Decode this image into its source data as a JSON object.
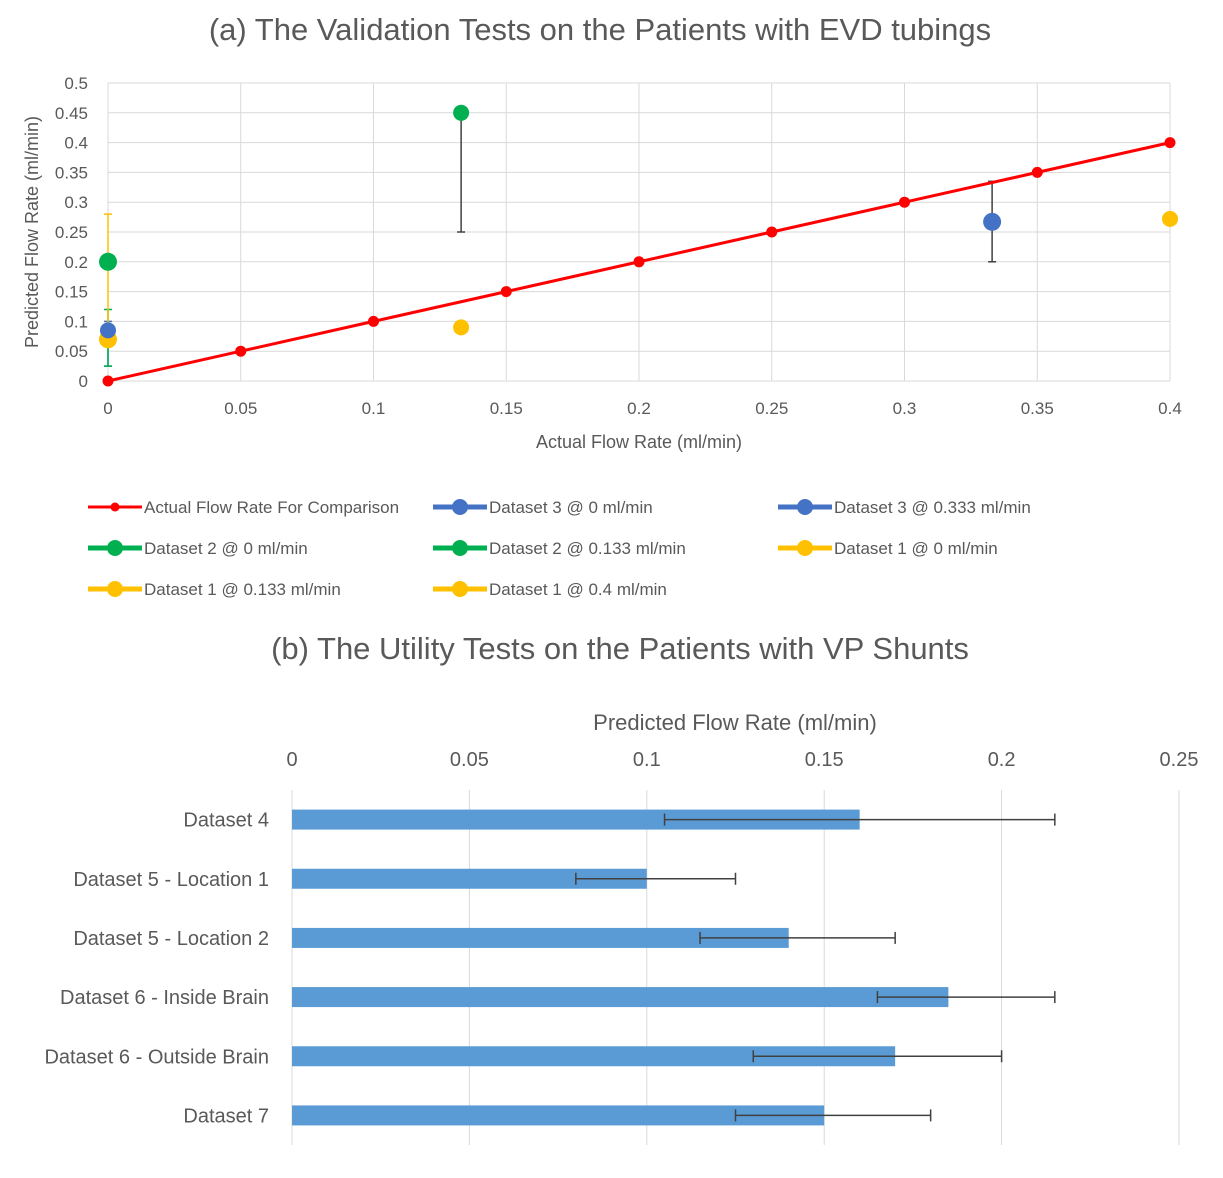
{
  "chart_data": [
    {
      "type": "scatter",
      "title": "(a) The Validation Tests on the Patients with EVD tubings",
      "xlabel": "Actual Flow Rate (ml/min)",
      "ylabel": "Predicted Flow Rate (ml/min)",
      "xlim": [
        0,
        0.4
      ],
      "ylim": [
        0,
        0.5
      ],
      "x_ticks": [
        "0",
        "0.05",
        "0.1",
        "0.15",
        "0.2",
        "0.25",
        "0.3",
        "0.35",
        "0.4"
      ],
      "y_ticks": [
        "0",
        "0.05",
        "0.1",
        "0.15",
        "0.2",
        "0.25",
        "0.3",
        "0.35",
        "0.4",
        "0.45",
        "0.5"
      ],
      "grid": true,
      "legend_position": "bottom",
      "series": [
        {
          "name": "Actual Flow Rate For Comparison",
          "color": "#ff0000",
          "style": "line-marker",
          "points": [
            [
              0,
              0
            ],
            [
              0.05,
              0.05
            ],
            [
              0.1,
              0.1
            ],
            [
              0.15,
              0.15
            ],
            [
              0.2,
              0.2
            ],
            [
              0.25,
              0.25
            ],
            [
              0.3,
              0.3
            ],
            [
              0.35,
              0.35
            ],
            [
              0.4,
              0.4
            ]
          ]
        },
        {
          "name": "Dataset 3 @ 0 ml/min",
          "color": "#4472c4",
          "style": "marker-small",
          "points": [
            [
              0,
              0.085
            ]
          ],
          "error": [
            [
              0.025,
              0.1
            ]
          ]
        },
        {
          "name": "Dataset 3 @ 0.333 ml/min",
          "color": "#4472c4",
          "style": "marker-large",
          "points": [
            [
              0.333,
              0.267
            ]
          ],
          "error": [
            [
              0.2,
              0.335
            ]
          ]
        },
        {
          "name": "Dataset 2 @ 0 ml/min",
          "color": "#00b050",
          "style": "marker-large",
          "points": [
            [
              0,
              0.2
            ]
          ],
          "error": [
            [
              0.025,
              0.12
            ]
          ]
        },
        {
          "name": "Dataset 2 @ 0.133 ml/min",
          "color": "#00b050",
          "style": "marker-small",
          "points": [
            [
              0.133,
              0.45
            ]
          ],
          "error": [
            [
              0.25,
              0.45
            ]
          ]
        },
        {
          "name": "Dataset 1 @ 0 ml/min",
          "color": "#ffc000",
          "style": "marker-large",
          "points": [
            [
              0,
              0.07
            ]
          ],
          "error": [
            [
              0.07,
              0.28
            ]
          ]
        },
        {
          "name": "Dataset 1 @ 0.133 ml/min",
          "color": "#ffc000",
          "style": "marker-small",
          "points": [
            [
              0.133,
              0.09
            ]
          ],
          "error": []
        },
        {
          "name": "Dataset 1 @ 0.4 ml/min",
          "color": "#ffc000",
          "style": "marker-small",
          "points": [
            [
              0.4,
              0.272
            ]
          ],
          "error": []
        }
      ]
    },
    {
      "type": "bar",
      "orientation": "horizontal",
      "title": "(b) The Utility Tests on the Patients with VP Shunts",
      "xlabel": "Predicted Flow Rate (ml/min)",
      "xlim": [
        0,
        0.25
      ],
      "x_ticks": [
        "0",
        "0.05",
        "0.1",
        "0.15",
        "0.2",
        "0.25"
      ],
      "grid": true,
      "bar_color": "#5b9bd5",
      "categories": [
        "Dataset 4",
        "Dataset 5 - Location 1",
        "Dataset 5 - Location 2",
        "Dataset 6 - Inside Brain",
        "Dataset 6 - Outside Brain",
        "Dataset 7"
      ],
      "values": [
        0.16,
        0.1,
        0.14,
        0.185,
        0.17,
        0.15
      ],
      "error_low": [
        0.105,
        0.08,
        0.115,
        0.165,
        0.13,
        0.125
      ],
      "error_high": [
        0.215,
        0.125,
        0.17,
        0.215,
        0.2,
        0.18
      ]
    }
  ]
}
